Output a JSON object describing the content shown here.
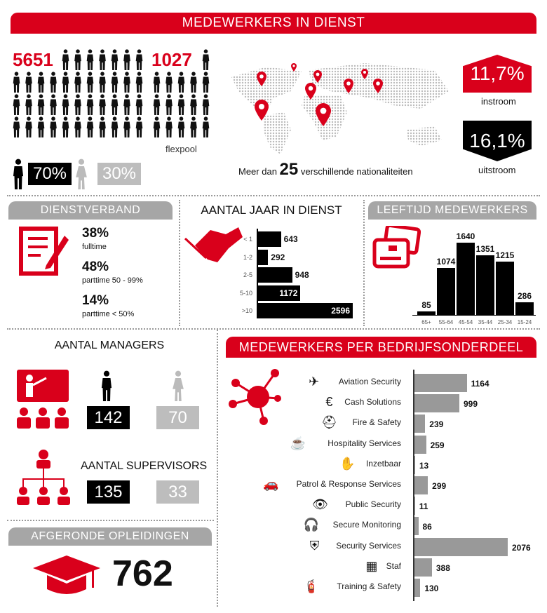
{
  "header": {
    "title": "MEDEWERKERS IN DIENST"
  },
  "staff": {
    "total": "5651",
    "flexpool_count": "1027",
    "flexpool_label": "flexpool",
    "male_pct": "70%",
    "female_pct": "30%"
  },
  "nationalities": {
    "prefix": "Meer dan",
    "count": "25",
    "suffix": "verschillende nationaliteiten"
  },
  "flow": {
    "instroom_value": "11,7%",
    "instroom_label": "instroom",
    "uitstroom_value": "16,1%",
    "uitstroom_label": "uitstroom"
  },
  "dienstverband": {
    "title": "DIENSTVERBAND",
    "items": [
      {
        "pct": "38%",
        "label": "fulltime"
      },
      {
        "pct": "48%",
        "label": "parttime 50 - 99%"
      },
      {
        "pct": "14%",
        "label": "parttime < 50%"
      }
    ]
  },
  "managers": {
    "title": "AANTAL MANAGERS",
    "male": "142",
    "female": "70"
  },
  "supervisors": {
    "title": "AANTAL SUPERVISORS",
    "male": "135",
    "female": "33"
  },
  "opleidingen": {
    "title": "AFGERONDE OPLEIDINGEN",
    "value": "762"
  },
  "colors": {
    "accent": "#d9001b",
    "dark": "#000000",
    "grey": "#a6a6a6"
  },
  "chart_data": [
    {
      "type": "bar",
      "orientation": "horizontal",
      "title": "AANTAL JAAR IN DIENST",
      "categories": [
        "< 1",
        "1-2",
        "2-5",
        "5-10",
        ">10"
      ],
      "values": [
        643,
        292,
        948,
        1172,
        2596
      ],
      "color": "#000000"
    },
    {
      "type": "bar",
      "orientation": "vertical",
      "title": "LEEFTIJD MEDEWERKERS",
      "categories": [
        "65+",
        "55-64",
        "45-54",
        "35-44",
        "25-34",
        "15-24"
      ],
      "values": [
        85,
        1074,
        1640,
        1351,
        1215,
        286
      ],
      "color": "#000000"
    },
    {
      "type": "bar",
      "orientation": "horizontal",
      "title": "MEDEWERKERS PER BEDRIJFSONDERDEEL",
      "categories": [
        "Aviation Security",
        "Cash Solutions",
        "Fire & Safety",
        "Hospitality Services",
        "Inzetbaar",
        "Patrol & Response Services",
        "Public Security",
        "Secure Monitoring",
        "Security Services",
        "Staf",
        "Training & Safety"
      ],
      "icons": [
        "plane-icon",
        "euro-cycle-icon",
        "helmet-icon",
        "coffee-cup-icon",
        "hand-icon",
        "car-icon",
        "eye-icon",
        "headset-icon",
        "shield-check-icon",
        "building-icon",
        "fire-extinguisher-icon"
      ],
      "values": [
        1164,
        999,
        239,
        259,
        13,
        299,
        11,
        86,
        2076,
        388,
        130
      ],
      "color": "#999999"
    }
  ]
}
